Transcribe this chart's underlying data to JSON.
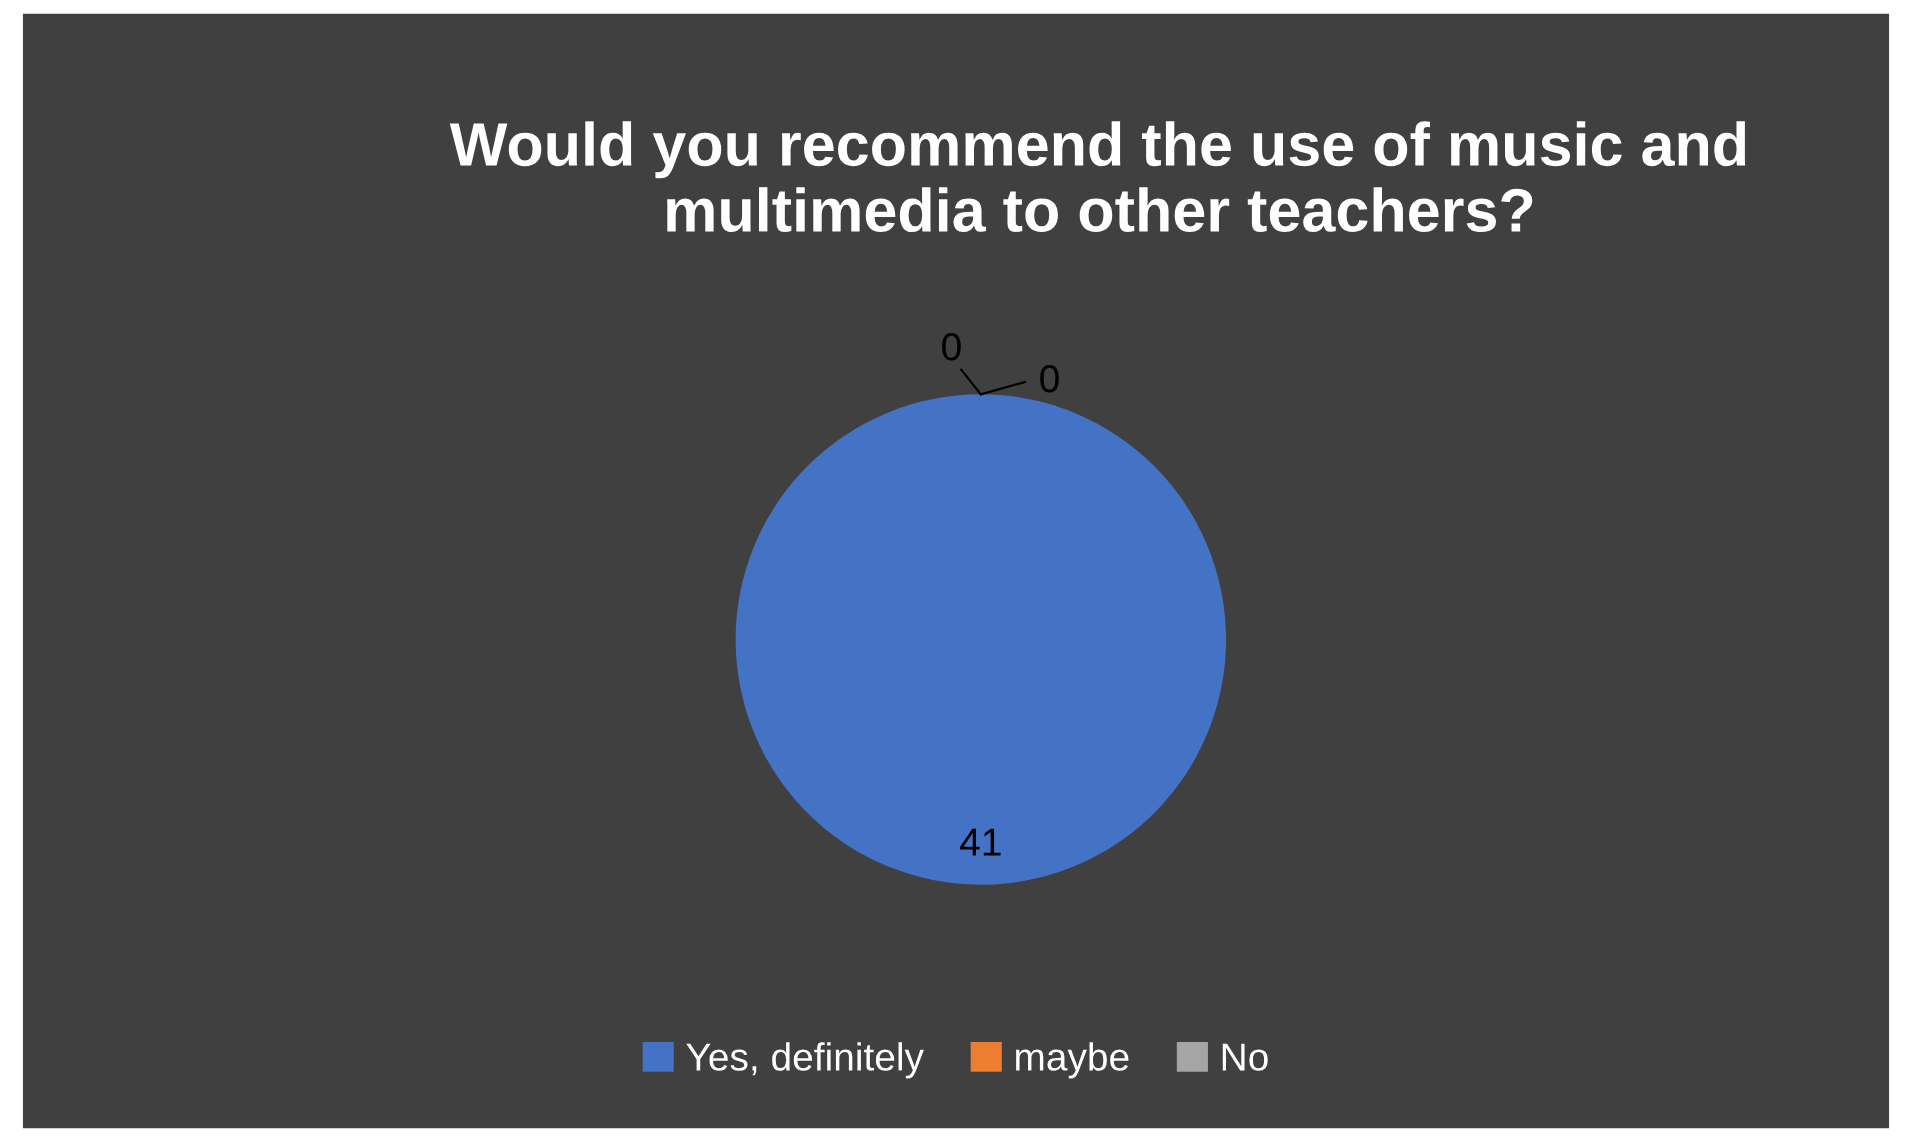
{
  "chart_data": {
    "type": "pie",
    "title": "Would you recommend the use of music and multimedia to other teachers?",
    "categories": [
      "Yes, definitely",
      "maybe",
      "No"
    ],
    "values": [
      41,
      0,
      0
    ],
    "colors": [
      "#4472c4",
      "#ed7d31",
      "#a5a5a5"
    ],
    "value_labels": [
      "41",
      "0",
      "0"
    ],
    "legend": "bottom"
  }
}
